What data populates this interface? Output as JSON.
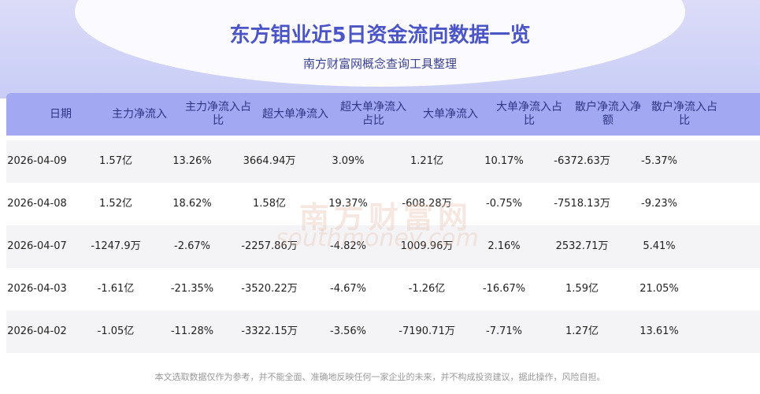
{
  "header": {
    "title": "东方钼业近5日资金流向数据一览",
    "subtitle": "南方财富网概念查询工具整理"
  },
  "table": {
    "columns": [
      "日期",
      "主力净流入",
      "主力净流入占比",
      "超大单净流入",
      "超大单净流入占比",
      "大单净流入",
      "大单净流入占比",
      "散户净流入净额",
      "散户净流入占比"
    ],
    "rows": [
      [
        "2026-04-09",
        "1.57亿",
        "13.26%",
        "3664.94万",
        "3.09%",
        "1.21亿",
        "10.17%",
        "-6372.63万",
        "-5.37%"
      ],
      [
        "2026-04-08",
        "1.52亿",
        "18.62%",
        "1.58亿",
        "19.37%",
        "-608.28万",
        "-0.75%",
        "-7518.13万",
        "-9.23%"
      ],
      [
        "2026-04-07",
        "-1247.9万",
        "-2.67%",
        "-2257.86万",
        "-4.82%",
        "1009.96万",
        "2.16%",
        "2532.71万",
        "5.41%"
      ],
      [
        "2026-04-03",
        "-1.61亿",
        "-21.35%",
        "-3520.22万",
        "-4.67%",
        "-1.26亿",
        "-16.67%",
        "1.59亿",
        "21.05%"
      ],
      [
        "2026-04-02",
        "-1.05亿",
        "-11.28%",
        "-3322.15万",
        "-3.56%",
        "-7190.71万",
        "-7.71%",
        "1.27亿",
        "13.61%"
      ]
    ]
  },
  "watermark": {
    "name": "南方财富网",
    "site": "southmoney.com"
  },
  "footer": "本文选取数据仅作为参考，并不能全面、准确地反映任何一家企业的未来，并不构成投资建议，据此操作，风险自担。"
}
